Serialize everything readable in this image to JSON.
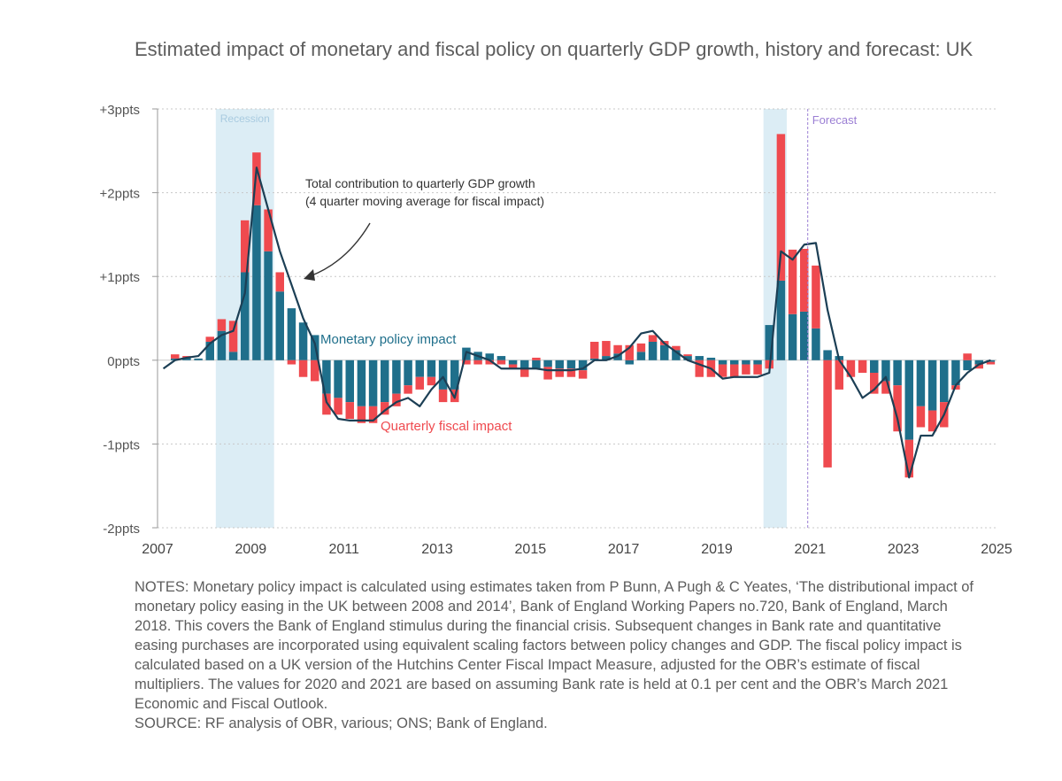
{
  "page": {
    "title": "Estimated impact of monetary and fiscal policy on quarterly GDP growth, history and forecast: UK",
    "notes": "NOTES: Monetary policy impact is calculated using estimates taken from P Bunn, A Pugh & C Yeates, ‘The distributional impact of monetary policy easing in the UK between 2008 and 2014’, Bank of England Working Papers no.720, Bank of England, March 2018. This covers the Bank of England stimulus during the financial crisis. Subsequent changes in Bank rate and quantitative easing purchases are incorporated using equivalent scaling factors between policy changes and GDP. The fiscal policy impact is calculated based on a UK version of the Hutchins Center Fiscal Impact Measure, adjusted for the OBR’s estimate of fiscal multipliers. The values for 2020 and 2021 are based on assuming Bank rate is held at 0.1 per cent and the OBR’s March 2021 Economic and Fiscal Outlook.",
    "source": "SOURCE: RF analysis of OBR, various; ONS; Bank of England."
  },
  "chart_data": {
    "type": "bar",
    "title": "Estimated impact of monetary and fiscal policy on quarterly GDP growth, history and forecast: UK",
    "xlabel": "",
    "ylabel": "",
    "ylim": [
      -2,
      3
    ],
    "grid": true,
    "xlim": [
      2007.0,
      2025.0
    ],
    "x_ticks": [
      2007,
      2009,
      2011,
      2013,
      2015,
      2017,
      2019,
      2021,
      2023,
      2025
    ],
    "x_tick_labels": [
      "2007",
      "2009",
      "2011",
      "2013",
      "2015",
      "2017",
      "2019",
      "2021",
      "2023",
      "2025"
    ],
    "y_ticks": [
      -2,
      -1,
      0,
      1,
      2,
      3
    ],
    "y_tick_labels": [
      "-2ppts",
      "-1ppts",
      "0ppts",
      "+1ppts",
      "+2ppts",
      "+3ppts"
    ],
    "colors": {
      "monetary": "#1f6f8b",
      "fiscal": "#ef4a4f",
      "total": "#1c3f55",
      "shade": "#dcedf5",
      "forecast_line": "#9b7fd4"
    },
    "shaded_periods": [
      {
        "label": "Recession",
        "start": 2008.25,
        "end": 2009.5
      },
      {
        "label": "",
        "start": 2020.0,
        "end": 2020.5
      }
    ],
    "forecast_start": 2020.95,
    "forecast_label": "Forecast",
    "annotations": {
      "total": "Total contribution to quarterly GDP growth",
      "total_sub": "(4 quarter moving average for fiscal impact)",
      "monetary": "Monetary policy impact",
      "fiscal": "Quarterly fiscal impact"
    },
    "quarters": [
      2007.0,
      2007.25,
      2007.5,
      2007.75,
      2008.0,
      2008.25,
      2008.5,
      2008.75,
      2009.0,
      2009.25,
      2009.5,
      2009.75,
      2010.0,
      2010.25,
      2010.5,
      2010.75,
      2011.0,
      2011.25,
      2011.5,
      2011.75,
      2012.0,
      2012.25,
      2012.5,
      2012.75,
      2013.0,
      2013.25,
      2013.5,
      2013.75,
      2014.0,
      2014.25,
      2014.5,
      2014.75,
      2015.0,
      2015.25,
      2015.5,
      2015.75,
      2016.0,
      2016.25,
      2016.5,
      2016.75,
      2017.0,
      2017.25,
      2017.5,
      2017.75,
      2018.0,
      2018.25,
      2018.5,
      2018.75,
      2019.0,
      2019.25,
      2019.5,
      2019.75,
      2020.0,
      2020.25,
      2020.5,
      2020.75,
      2021.0,
      2021.25,
      2021.5,
      2021.75,
      2022.0,
      2022.25,
      2022.5,
      2022.75,
      2023.0,
      2023.25,
      2023.5,
      2023.75,
      2024.0,
      2024.25,
      2024.5,
      2024.75
    ],
    "series": [
      {
        "name": "Monetary policy impact",
        "values": [
          0,
          0.02,
          0.03,
          0.02,
          0.22,
          0.35,
          0.1,
          1.05,
          1.85,
          1.3,
          0.82,
          0.62,
          0.45,
          0.3,
          -0.4,
          -0.45,
          -0.5,
          -0.55,
          -0.55,
          -0.5,
          -0.4,
          -0.3,
          -0.2,
          -0.2,
          -0.35,
          -0.35,
          0.15,
          0.1,
          0.08,
          0.05,
          -0.05,
          -0.1,
          -0.1,
          -0.08,
          -0.1,
          -0.1,
          -0.12,
          0.02,
          0.05,
          0.08,
          -0.05,
          0.1,
          0.22,
          0.18,
          0.12,
          0.05,
          0.05,
          0.03,
          -0.05,
          -0.05,
          -0.05,
          -0.05,
          0.42,
          0.95,
          0.55,
          0.58,
          0.38,
          0.12,
          0.05,
          0.0,
          0.0,
          -0.15,
          -0.25,
          -0.3,
          -0.95,
          -0.55,
          -0.6,
          -0.5,
          -0.3,
          -0.12,
          -0.05,
          -0.02
        ]
      },
      {
        "name": "Quarterly fiscal impact",
        "values": [
          0,
          0.05,
          0.02,
          0.0,
          0.06,
          0.14,
          0.37,
          0.62,
          0.63,
          0.5,
          0.23,
          -0.05,
          -0.2,
          -0.25,
          -0.25,
          -0.2,
          -0.2,
          -0.2,
          -0.2,
          -0.15,
          -0.15,
          -0.1,
          -0.15,
          -0.1,
          -0.15,
          -0.15,
          -0.05,
          -0.05,
          -0.05,
          -0.05,
          -0.05,
          -0.1,
          0.03,
          -0.15,
          -0.1,
          -0.1,
          -0.1,
          0.2,
          0.18,
          0.1,
          0.18,
          0.1,
          0.08,
          0.05,
          0.05,
          0.02,
          -0.2,
          -0.2,
          -0.15,
          -0.15,
          -0.12,
          -0.12,
          -0.1,
          1.75,
          0.77,
          0.75,
          0.75,
          -1.28,
          -0.35,
          -0.2,
          -0.15,
          -0.25,
          -0.15,
          -0.55,
          -0.45,
          -0.25,
          -0.25,
          -0.3,
          -0.05,
          0.08,
          -0.05,
          -0.03
        ]
      },
      {
        "name": "Total contribution to quarterly GDP growth",
        "values": [
          -0.1,
          0.0,
          0.03,
          0.05,
          0.2,
          0.3,
          0.35,
          0.8,
          2.3,
          1.8,
          1.3,
          0.9,
          0.5,
          0.2,
          -0.5,
          -0.7,
          -0.72,
          -0.72,
          -0.72,
          -0.6,
          -0.5,
          -0.45,
          -0.55,
          -0.35,
          -0.2,
          -0.45,
          0.1,
          0.05,
          0.0,
          -0.1,
          -0.1,
          -0.1,
          -0.1,
          -0.12,
          -0.12,
          -0.12,
          -0.1,
          0.0,
          0.0,
          0.05,
          0.15,
          0.32,
          0.35,
          0.2,
          0.1,
          0.0,
          -0.05,
          -0.1,
          -0.22,
          -0.2,
          -0.2,
          -0.2,
          -0.15,
          1.3,
          1.2,
          1.38,
          1.4,
          0.6,
          0.0,
          -0.2,
          -0.45,
          -0.35,
          -0.2,
          -0.7,
          -1.4,
          -0.9,
          -0.9,
          -0.65,
          -0.3,
          -0.15,
          -0.05,
          0.0
        ]
      }
    ]
  }
}
